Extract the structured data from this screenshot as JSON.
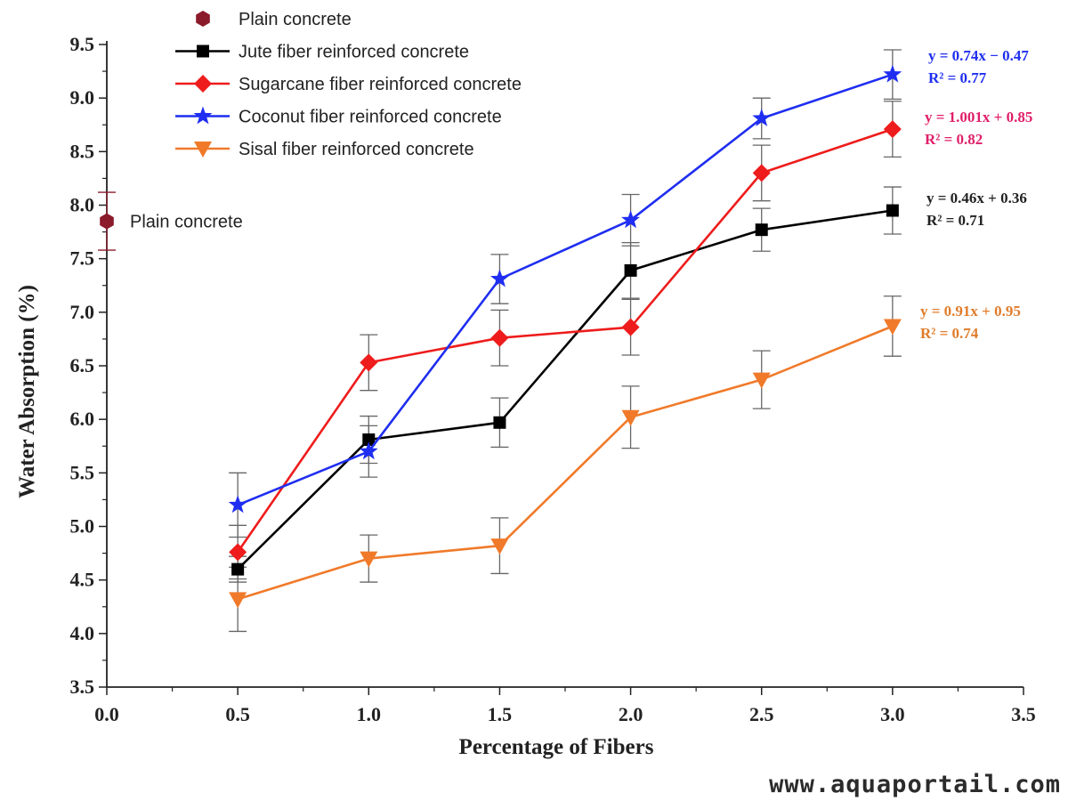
{
  "watermark": "www.aquaportail.com",
  "chart_data": {
    "type": "line",
    "xlabel": "Percentage of Fibers",
    "ylabel": "Water Absorption (%)",
    "xlim": [
      0.0,
      3.5
    ],
    "ylim": [
      3.5,
      9.5
    ],
    "x_ticks": [
      "0.0",
      "0.5",
      "1.0",
      "1.5",
      "2.0",
      "2.5",
      "3.0",
      "3.5"
    ],
    "y_ticks": [
      "3.5",
      "4.0",
      "4.5",
      "5.0",
      "5.5",
      "6.0",
      "6.5",
      "7.0",
      "7.5",
      "8.0",
      "8.5",
      "9.0",
      "9.5"
    ],
    "grid": false,
    "legend_position": "top-left",
    "plain_concrete": {
      "name": "Plain concrete",
      "annotation": "Plain concrete",
      "x": 0.0,
      "y": 7.85,
      "err": 0.27,
      "color": "#8b1a2b",
      "marker": "hexagon"
    },
    "x": [
      0.5,
      1.0,
      1.5,
      2.0,
      2.5,
      3.0
    ],
    "series": [
      {
        "name": "Jute fiber reinforced concrete",
        "values": [
          4.6,
          5.81,
          5.97,
          7.39,
          7.77,
          7.95
        ],
        "errors": [
          0.12,
          0.22,
          0.23,
          0.26,
          0.2,
          0.22
        ],
        "color": "#000000",
        "marker": "square",
        "equation": "y = 0.46x + 0.36",
        "r2": "R² = 0.71",
        "eq_color": "#222222"
      },
      {
        "name": "Sugarcane fiber reinforced concrete",
        "values": [
          4.76,
          6.53,
          6.76,
          6.86,
          8.3,
          8.71
        ],
        "errors": [
          0.25,
          0.26,
          0.26,
          0.26,
          0.26,
          0.26
        ],
        "color": "#ee1c1c",
        "marker": "diamond",
        "equation": "y = 1.001x + 0.85",
        "r2": "R² = 0.82",
        "eq_color": "#e0206a"
      },
      {
        "name": "Coconut fiber reinforced concrete",
        "values": [
          5.2,
          5.7,
          7.31,
          7.86,
          8.81,
          9.22
        ],
        "errors": [
          0.3,
          0.24,
          0.23,
          0.24,
          0.19,
          0.23
        ],
        "color": "#1f2ef0",
        "marker": "star",
        "equation": "y = 0.74x − 0.47",
        "r2": "R² = 0.77",
        "eq_color": "#1f2ef0"
      },
      {
        "name": "Sisal fiber reinforced concrete",
        "values": [
          4.32,
          4.7,
          4.82,
          6.02,
          6.37,
          6.87
        ],
        "errors": [
          0.3,
          0.22,
          0.26,
          0.29,
          0.27,
          0.28
        ],
        "color": "#f07a2a",
        "marker": "triangle-down",
        "equation": "y = 0.91x + 0.95",
        "r2": "R² = 0.74",
        "eq_color": "#e07c2a"
      }
    ]
  }
}
